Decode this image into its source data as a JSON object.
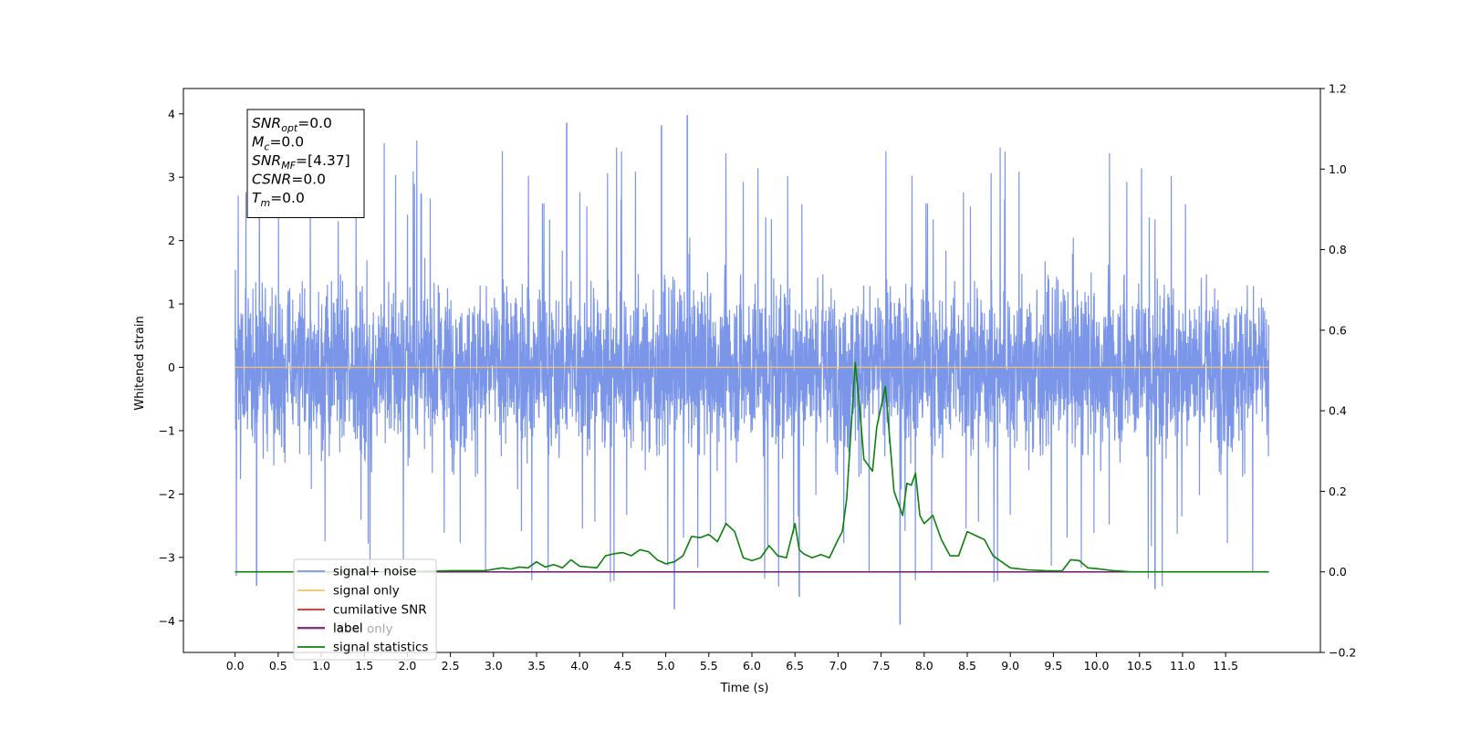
{
  "chart_data": {
    "type": "line",
    "xlabel": "Time (s)",
    "ylabel_left": "Whitened strain",
    "ylabel_right": "",
    "x_range": [
      -0.6,
      12.6
    ],
    "ylim_left": [
      -4.5,
      4.4
    ],
    "ylim_right": [
      -0.2,
      1.2
    ],
    "x_ticks": [
      0.0,
      0.5,
      1.0,
      1.5,
      2.0,
      2.5,
      3.0,
      3.5,
      4.0,
      4.5,
      5.0,
      5.5,
      6.0,
      6.5,
      7.0,
      7.5,
      8.0,
      8.5,
      9.0,
      9.5,
      10.0,
      10.5,
      11.0,
      11.5
    ],
    "x_tick_labels": [
      "0.0",
      "0.5",
      "1.0",
      "1.5",
      "2.0",
      "2.5",
      "3.0",
      "3.5",
      "4.0",
      "4.5",
      "5.0",
      "5.5",
      "6.0",
      "6.5",
      "7.0",
      "7.5",
      "8.0",
      "8.5",
      "9.0",
      "9.5",
      "10.0",
      "10.5",
      "11.0",
      "11.5"
    ],
    "y_ticks_left": [
      -4,
      -3,
      -2,
      -1,
      0,
      1,
      2,
      3,
      4
    ],
    "y_ticks_right": [
      -0.2,
      0.0,
      0.2,
      0.4,
      0.6,
      0.8,
      1.0,
      1.2
    ],
    "grid": false,
    "legend_position": "lower-left",
    "annotation_box": {
      "position": "top-left",
      "lines": [
        {
          "sym": "SNR",
          "sub": "opt",
          "value": "=0.0"
        },
        {
          "sym": "M",
          "sub": "c",
          "value": "=0.0"
        },
        {
          "sym": "SNR",
          "sub": "MF",
          "value": "=[4.37]"
        },
        {
          "sym": "CSNR",
          "sub": "",
          "value": "=0.0"
        },
        {
          "sym": "T",
          "sub": "m",
          "value": "=0.0"
        }
      ]
    },
    "series": [
      {
        "name": "signal+ noise",
        "axis": "left",
        "color": "#7b96e8",
        "kind": "noise",
        "x_range": [
          0.0,
          12.0
        ],
        "typical_amplitude": [
          -2.0,
          2.4
        ],
        "max_peak": 3.98,
        "min_peak": -4.06
      },
      {
        "name": "signal only",
        "axis": "left",
        "color": "#f7c368",
        "x": [
          0.0,
          12.0
        ],
        "y": [
          0.0,
          0.0
        ]
      },
      {
        "name": "cumilative SNR",
        "axis": "right",
        "color": "#e8231a",
        "x": [
          0.0,
          12.0
        ],
        "y": [
          0.0,
          0.0
        ]
      },
      {
        "name": "label",
        "axis": "right",
        "color": "#6e1a6e",
        "x": [
          0.0,
          12.0
        ],
        "y": [
          0.0,
          0.0
        ]
      },
      {
        "name": "label only",
        "axis": "right",
        "color": "#6e1a6e",
        "hidden_behind_legend": true
      },
      {
        "name": "signal statistics",
        "axis": "right",
        "color": "#0d800d",
        "x": [
          0.0,
          0.5,
          1.0,
          1.5,
          2.0,
          2.5,
          2.9,
          3.1,
          3.2,
          3.3,
          3.4,
          3.5,
          3.6,
          3.7,
          3.8,
          3.9,
          4.0,
          4.1,
          4.2,
          4.3,
          4.4,
          4.5,
          4.6,
          4.7,
          4.8,
          4.9,
          5.0,
          5.1,
          5.2,
          5.3,
          5.4,
          5.5,
          5.6,
          5.7,
          5.8,
          5.9,
          6.0,
          6.1,
          6.2,
          6.3,
          6.4,
          6.5,
          6.55,
          6.6,
          6.7,
          6.8,
          6.9,
          7.0,
          7.05,
          7.1,
          7.2,
          7.25,
          7.3,
          7.4,
          7.45,
          7.55,
          7.65,
          7.75,
          7.8,
          7.85,
          7.9,
          7.95,
          8.0,
          8.1,
          8.15,
          8.2,
          8.3,
          8.4,
          8.5,
          8.6,
          8.7,
          8.8,
          8.9,
          9.0,
          9.2,
          9.4,
          9.6,
          9.7,
          9.8,
          9.9,
          10.0,
          10.2,
          10.4,
          10.6,
          11.0,
          11.5,
          11.99
        ],
        "y": [
          0,
          0,
          0,
          0,
          0,
          0.003,
          0.003,
          0.01,
          0.007,
          0.012,
          0.01,
          0.025,
          0.012,
          0.018,
          0.01,
          0.03,
          0.014,
          0.012,
          0.01,
          0.04,
          0.045,
          0.048,
          0.04,
          0.055,
          0.05,
          0.03,
          0.02,
          0.025,
          0.04,
          0.088,
          0.085,
          0.093,
          0.075,
          0.12,
          0.1,
          0.035,
          0.028,
          0.035,
          0.065,
          0.04,
          0.035,
          0.12,
          0.055,
          0.045,
          0.035,
          0.043,
          0.035,
          0.08,
          0.1,
          0.18,
          0.52,
          0.41,
          0.28,
          0.25,
          0.36,
          0.46,
          0.2,
          0.14,
          0.22,
          0.215,
          0.245,
          0.14,
          0.12,
          0.14,
          0.11,
          0.08,
          0.04,
          0.04,
          0.1,
          0.09,
          0.08,
          0.04,
          0.025,
          0.01,
          0.005,
          0.003,
          0.002,
          0.03,
          0.028,
          0.01,
          0.008,
          0.003,
          0,
          0,
          0,
          0,
          0
        ]
      }
    ]
  }
}
